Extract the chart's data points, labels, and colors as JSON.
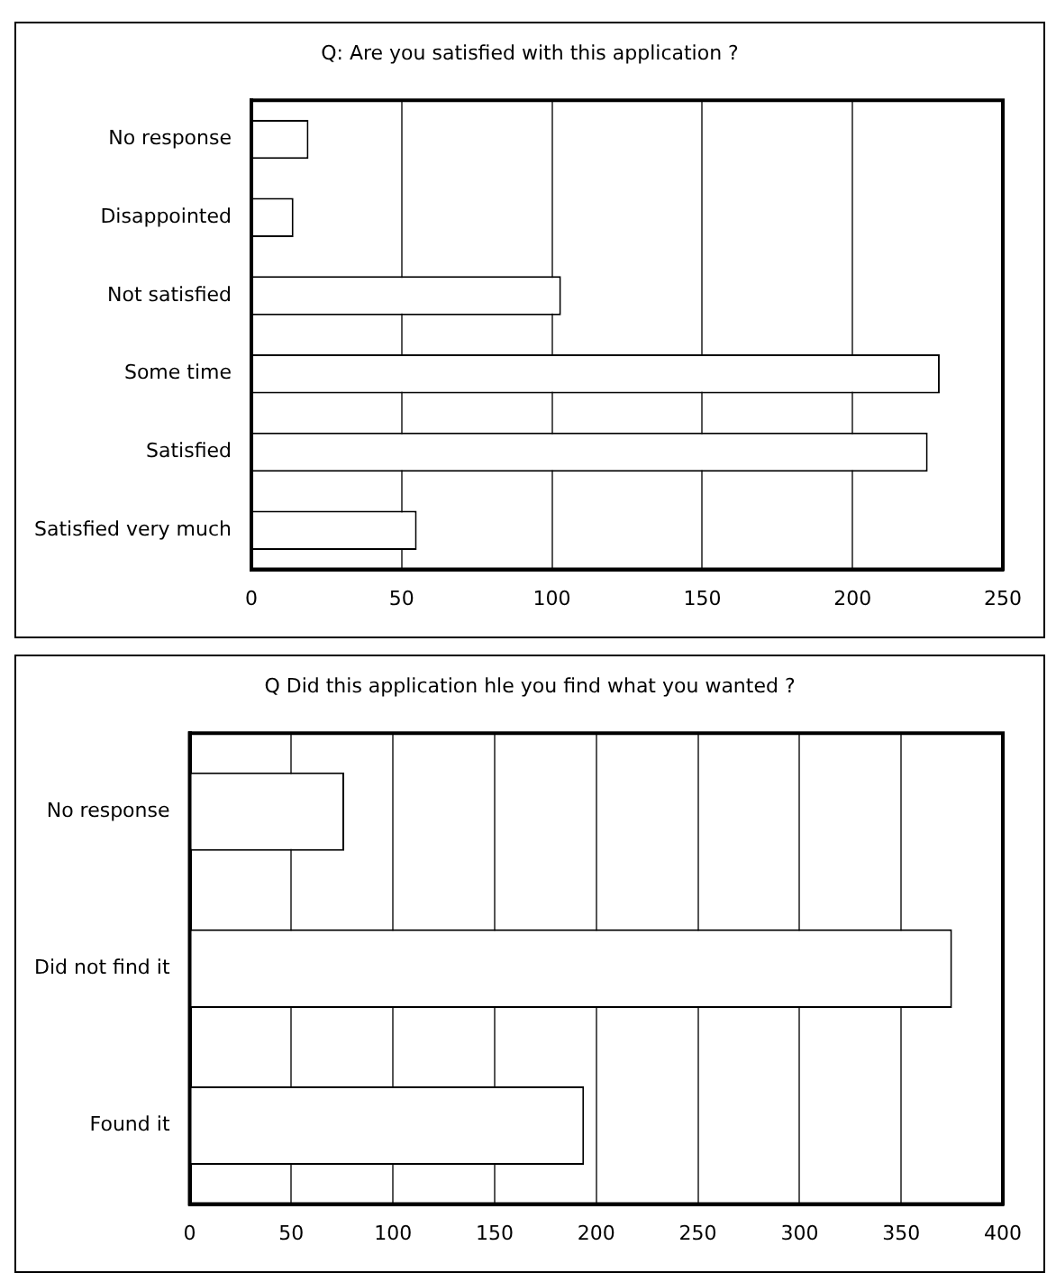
{
  "chart_data": [
    {
      "type": "bar",
      "orientation": "horizontal",
      "title": "Q: Are you satisfied with this application ?",
      "categories": [
        "No response",
        "Disappointed",
        "Not satisfied",
        "Some time",
        "Satisfied",
        "Satisfied very much"
      ],
      "values": [
        19,
        14,
        103,
        229,
        225,
        55
      ],
      "color": "#ffffff",
      "xlim": [
        0,
        250
      ],
      "xticks": [
        0,
        50,
        100,
        150,
        200,
        250
      ],
      "grid": "x",
      "legend": false
    },
    {
      "type": "bar",
      "orientation": "horizontal",
      "title": "Q Did this application hle you find what you wanted ?",
      "categories": [
        "No response",
        "Did not find it",
        "Found it"
      ],
      "values": [
        76,
        375,
        194
      ],
      "color": "#ffffff",
      "xlim": [
        0,
        400
      ],
      "xticks": [
        0,
        50,
        100,
        150,
        200,
        250,
        300,
        350,
        400
      ],
      "grid": "x",
      "legend": false
    }
  ]
}
